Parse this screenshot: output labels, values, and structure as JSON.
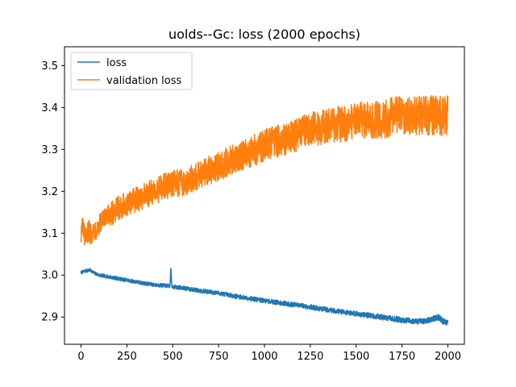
{
  "chart_data": {
    "type": "line",
    "title": "uolds--Gc: loss (2000 epochs)",
    "xlabel": "",
    "ylabel": "",
    "xlim": [
      -90,
      2090
    ],
    "ylim": [
      2.835,
      3.545
    ],
    "x_ticks": [
      0,
      250,
      500,
      750,
      1000,
      1250,
      1500,
      1750,
      2000
    ],
    "y_ticks": [
      2.9,
      3.0,
      3.1,
      3.2,
      3.3,
      3.4,
      3.5
    ],
    "x_tick_labels": [
      "0",
      "250",
      "500",
      "750",
      "1000",
      "1250",
      "1500",
      "1750",
      "2000"
    ],
    "y_tick_labels": [
      "2.9",
      "3.0",
      "3.1",
      "3.2",
      "3.3",
      "3.4",
      "3.5"
    ],
    "grid": false,
    "legend_position": "upper-left",
    "series": [
      {
        "name": "loss",
        "color": "#1f77b4",
        "x": [
          0,
          25,
          50,
          75,
          100,
          150,
          200,
          250,
          300,
          350,
          400,
          450,
          485,
          490,
          495,
          500,
          550,
          600,
          650,
          700,
          750,
          800,
          850,
          900,
          950,
          1000,
          1050,
          1100,
          1150,
          1200,
          1250,
          1300,
          1350,
          1400,
          1450,
          1500,
          1550,
          1600,
          1650,
          1700,
          1750,
          1800,
          1850,
          1900,
          1950,
          1975,
          2000
        ],
        "values": [
          3.006,
          3.01,
          3.012,
          3.004,
          3.0,
          2.996,
          2.992,
          2.988,
          2.984,
          2.98,
          2.977,
          2.975,
          2.974,
          3.016,
          2.975,
          2.972,
          2.97,
          2.966,
          2.963,
          2.96,
          2.957,
          2.953,
          2.949,
          2.946,
          2.942,
          2.939,
          2.936,
          2.933,
          2.93,
          2.927,
          2.924,
          2.92,
          2.917,
          2.914,
          2.911,
          2.908,
          2.905,
          2.902,
          2.899,
          2.896,
          2.893,
          2.891,
          2.889,
          2.893,
          2.9,
          2.889,
          2.887
        ]
      },
      {
        "name": "validation loss",
        "color": "#ff7f0e",
        "x": [
          0,
          10,
          20,
          30,
          40,
          50,
          75,
          100,
          150,
          200,
          250,
          300,
          350,
          400,
          450,
          500,
          550,
          600,
          650,
          700,
          750,
          800,
          850,
          900,
          950,
          1000,
          1050,
          1100,
          1150,
          1200,
          1250,
          1300,
          1350,
          1400,
          1450,
          1500,
          1550,
          1600,
          1650,
          1700,
          1750,
          1800,
          1850,
          1900,
          1950,
          2000
        ],
        "values": [
          3.1,
          3.12,
          3.09,
          3.08,
          3.11,
          3.1,
          3.11,
          3.12,
          3.14,
          3.16,
          3.17,
          3.18,
          3.19,
          3.2,
          3.21,
          3.22,
          3.22,
          3.23,
          3.24,
          3.25,
          3.26,
          3.27,
          3.28,
          3.29,
          3.3,
          3.31,
          3.32,
          3.32,
          3.33,
          3.34,
          3.35,
          3.35,
          3.36,
          3.36,
          3.36,
          3.37,
          3.37,
          3.37,
          3.37,
          3.38,
          3.38,
          3.38,
          3.38,
          3.38,
          3.38,
          3.38
        ]
      }
    ]
  }
}
